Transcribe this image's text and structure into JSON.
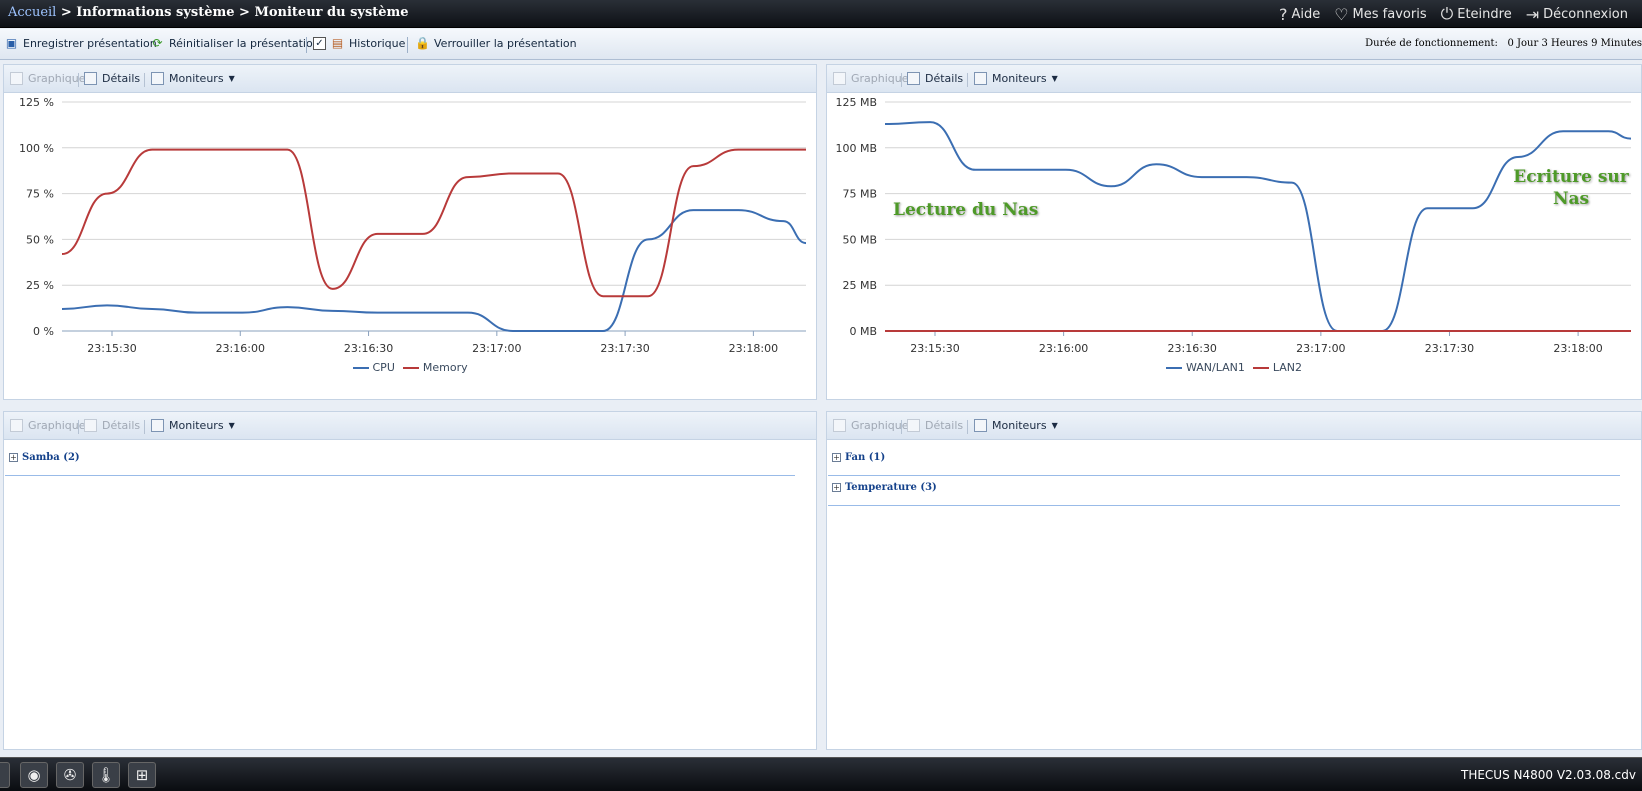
{
  "breadcrumb": {
    "home": "Accueil",
    "rest": " > Informations système > Moniteur du système"
  },
  "topnav": [
    {
      "icon": "help-icon",
      "glyph": "?",
      "label": "Aide"
    },
    {
      "icon": "heart-icon",
      "glyph": "♡",
      "label": "Mes favoris"
    },
    {
      "icon": "power-icon",
      "glyph": "⏻",
      "label": "Eteindre"
    },
    {
      "icon": "logout-icon",
      "glyph": "⇥",
      "label": "Déconnexion"
    }
  ],
  "toolbar": {
    "save": "Enregistrer présentation",
    "reset": "Réinitialiser la présentation",
    "history": "Historique",
    "lock": "Verrouiller la présentation",
    "uptime_label": "Durée de fonctionnement:",
    "uptime_value": "0 Jour 3 Heures 9 Minutes"
  },
  "panel_head": {
    "graph": "Graphique",
    "details": "Détails",
    "monitors": "Moniteurs"
  },
  "colors": {
    "blue": "#3b6eb2",
    "red": "#b83a3a",
    "annotation": "#4e9a28"
  },
  "chart_data": [
    {
      "type": "line",
      "ylabels": [
        "125 %",
        "100 %",
        "75 %",
        "50 %",
        "25 %",
        "0 %"
      ],
      "ylim": [
        0,
        125
      ],
      "xlim": [
        0,
        165
      ],
      "xticks": [
        {
          "x": 25,
          "label": "23:15:30"
        },
        {
          "x": 55,
          "label": "23:16:00"
        },
        {
          "x": 85,
          "label": "23:16:30"
        },
        {
          "x": 115,
          "label": "23:17:00"
        },
        {
          "x": 145,
          "label": "23:17:30"
        },
        {
          "x": 175,
          "label": "23:18:00"
        }
      ],
      "legend_position": "bottom",
      "series": [
        {
          "name": "CPU",
          "color": "#3b6eb2",
          "points": [
            [
              0,
              12
            ],
            [
              10,
              14
            ],
            [
              20,
              12
            ],
            [
              30,
              10
            ],
            [
              40,
              10
            ],
            [
              50,
              13
            ],
            [
              60,
              11
            ],
            [
              70,
              10
            ],
            [
              80,
              10
            ],
            [
              90,
              10
            ],
            [
              100,
              0
            ],
            [
              110,
              0
            ],
            [
              120,
              0
            ],
            [
              130,
              50
            ],
            [
              140,
              66
            ],
            [
              150,
              66
            ],
            [
              160,
              60
            ],
            [
              165,
              48
            ]
          ]
        },
        {
          "name": "Memory",
          "color": "#b83a3a",
          "points": [
            [
              0,
              42
            ],
            [
              10,
              75
            ],
            [
              20,
              99
            ],
            [
              30,
              99
            ],
            [
              40,
              99
            ],
            [
              50,
              99
            ],
            [
              60,
              23
            ],
            [
              70,
              53
            ],
            [
              80,
              53
            ],
            [
              90,
              84
            ],
            [
              100,
              86
            ],
            [
              110,
              86
            ],
            [
              120,
              19
            ],
            [
              130,
              19
            ],
            [
              140,
              90
            ],
            [
              150,
              99
            ],
            [
              160,
              99
            ],
            [
              165,
              99
            ]
          ]
        }
      ]
    },
    {
      "type": "line",
      "ylabels": [
        "125 MB",
        "100 MB",
        "75 MB",
        "50 MB",
        "25 MB",
        "0 MB"
      ],
      "ylim": [
        0,
        125
      ],
      "xlim": [
        0,
        165
      ],
      "xticks": [
        {
          "x": 25,
          "label": "23:15:30"
        },
        {
          "x": 55,
          "label": "23:16:00"
        },
        {
          "x": 85,
          "label": "23:16:30"
        },
        {
          "x": 115,
          "label": "23:17:00"
        },
        {
          "x": 145,
          "label": "23:17:30"
        },
        {
          "x": 175,
          "label": "23:18:00"
        }
      ],
      "legend_position": "bottom",
      "series": [
        {
          "name": "WAN/LAN1",
          "color": "#3b6eb2",
          "points": [
            [
              0,
              113
            ],
            [
              10,
              114
            ],
            [
              20,
              88
            ],
            [
              30,
              88
            ],
            [
              40,
              88
            ],
            [
              50,
              79
            ],
            [
              60,
              91
            ],
            [
              70,
              84
            ],
            [
              80,
              84
            ],
            [
              90,
              81
            ],
            [
              100,
              0
            ],
            [
              110,
              0
            ],
            [
              120,
              67
            ],
            [
              130,
              67
            ],
            [
              140,
              95
            ],
            [
              150,
              109
            ],
            [
              160,
              109
            ],
            [
              165,
              105
            ]
          ]
        },
        {
          "name": "LAN2",
          "color": "#b83a3a",
          "points": [
            [
              0,
              0
            ],
            [
              165,
              0
            ]
          ]
        }
      ]
    }
  ],
  "annotations": {
    "read": "Lecture du Nas",
    "write_line1": "Ecriture sur",
    "write_line2": "Nas"
  },
  "groups": {
    "samba": "Samba (2)",
    "fan": "Fan (1)",
    "temperature": "Temperature (3)"
  },
  "dock": [
    {
      "icon": "disk-icon",
      "glyph": "◉"
    },
    {
      "icon": "fan-icon",
      "glyph": "✇"
    },
    {
      "icon": "thermometer-icon",
      "glyph": "🌡"
    },
    {
      "icon": "network-icon",
      "glyph": "⊞"
    }
  ],
  "version": "THECUS N4800 V2.03.08.cdv"
}
